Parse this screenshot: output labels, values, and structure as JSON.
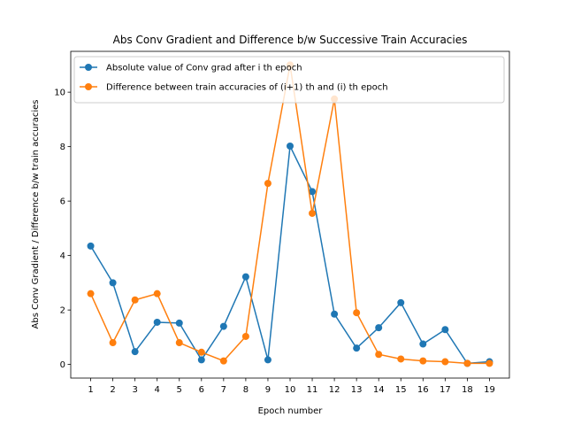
{
  "chart_data": {
    "type": "line",
    "title": "Abs Conv Gradient and Difference b/w Successive Train Accuracies",
    "xlabel": "Epoch number",
    "ylabel": "Abs Conv Gradient / Difference b/w train accuracies",
    "x": [
      1,
      2,
      3,
      4,
      5,
      6,
      7,
      8,
      9,
      10,
      11,
      12,
      13,
      14,
      15,
      16,
      17,
      18,
      19
    ],
    "xlim": [
      0.1,
      19.9
    ],
    "ylim": [
      -0.5,
      11.5
    ],
    "yticks": [
      0,
      2,
      4,
      6,
      8,
      10
    ],
    "grid": false,
    "legend_position": "top-left",
    "series": [
      {
        "name": "Absolute value of Conv grad after i th epoch",
        "color": "#1f77b4",
        "values": [
          4.35,
          3.0,
          0.47,
          1.55,
          1.52,
          0.17,
          1.4,
          3.22,
          0.17,
          8.02,
          6.35,
          1.85,
          0.6,
          1.35,
          2.27,
          0.75,
          1.28,
          0.04,
          0.1
        ]
      },
      {
        "name": "Difference between train accuracies of (i+1) th and (i) th epoch",
        "color": "#ff7f0e",
        "values": [
          2.6,
          0.8,
          2.37,
          2.6,
          0.8,
          0.45,
          0.13,
          1.03,
          6.65,
          11.0,
          5.55,
          9.75,
          1.9,
          0.37,
          0.2,
          0.13,
          0.1,
          0.04,
          0.04
        ]
      }
    ]
  }
}
